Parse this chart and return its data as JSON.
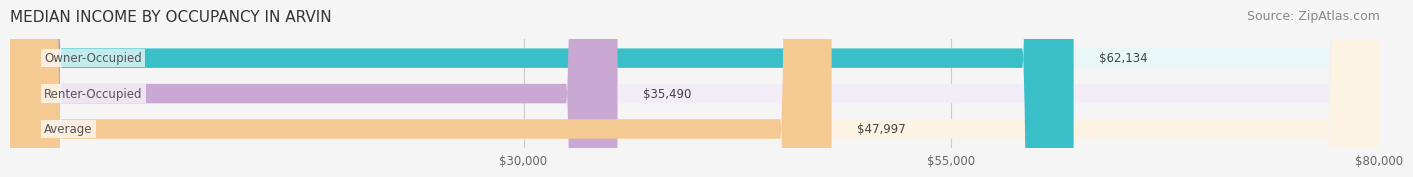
{
  "title": "MEDIAN INCOME BY OCCUPANCY IN ARVIN",
  "source": "Source: ZipAtlas.com",
  "categories": [
    "Owner-Occupied",
    "Renter-Occupied",
    "Average"
  ],
  "values": [
    62134,
    35490,
    47997
  ],
  "labels": [
    "$62,134",
    "$35,490",
    "$47,997"
  ],
  "bar_colors": [
    "#38bfc8",
    "#c9a8d4",
    "#f5c992"
  ],
  "bar_bg_colors": [
    "#e8f8f9",
    "#f3edf7",
    "#fdf3e3"
  ],
  "label_colors": [
    "#555555",
    "#555555",
    "#555555"
  ],
  "category_label_color": "#555555",
  "xlim": [
    0,
    80000
  ],
  "xticks": [
    30000,
    55000,
    80000
  ],
  "xtick_labels": [
    "$30,000",
    "$55,000",
    "$80,000"
  ],
  "title_fontsize": 11,
  "source_fontsize": 9,
  "bar_height": 0.55,
  "background_color": "#f5f5f5"
}
